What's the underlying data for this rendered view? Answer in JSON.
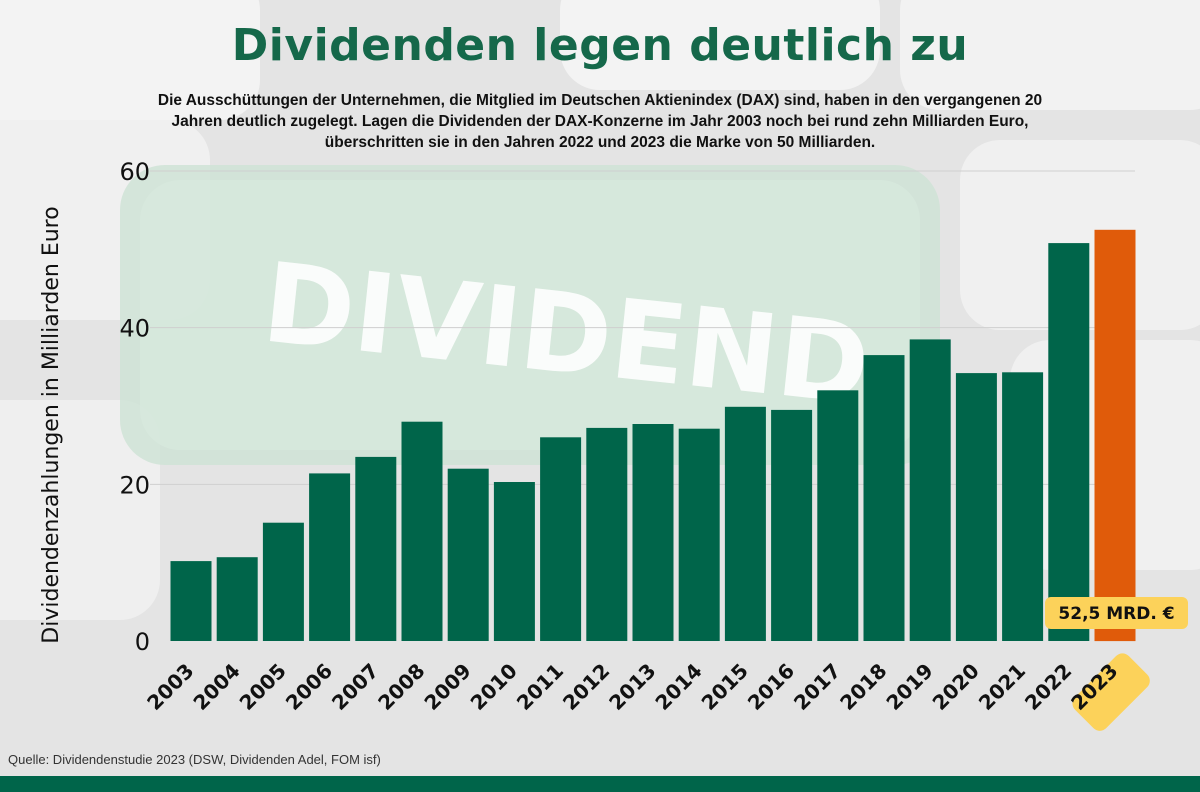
{
  "header": {
    "title": "Dividenden legen deutlich zu",
    "subtitle_lines": [
      "Die Ausschüttungen der Unternehmen, die Mitglied im Deutschen Aktienindex (DAX) sind, haben in den vergangenen 20",
      "Jahren deutlich zugelegt. Lagen die Dividenden der DAX-Konzerne im Jahr 2003 noch bei rund zehn Milliarden Euro,",
      "überschritten sie in den Jahren 2022 und 2023 die Marke von 50 Milliarden."
    ]
  },
  "background": {
    "watermark": "DIVIDEND"
  },
  "chart_data": {
    "type": "bar",
    "title": "Dividenden legen deutlich zu",
    "ylabel": "Dividendenzahlungen in Milliarden Euro",
    "xlabel": "",
    "ylim": [
      0,
      60
    ],
    "yticks": [
      0,
      20,
      40,
      60
    ],
    "grid": true,
    "categories": [
      "2003",
      "2004",
      "2005",
      "2006",
      "2007",
      "2008",
      "2009",
      "2010",
      "2011",
      "2012",
      "2013",
      "2014",
      "2015",
      "2016",
      "2017",
      "2018",
      "2019",
      "2020",
      "2021",
      "2022",
      "2023"
    ],
    "values": [
      10.2,
      10.7,
      15.1,
      21.4,
      23.5,
      28.0,
      22.0,
      20.3,
      26.0,
      27.2,
      27.7,
      27.1,
      29.9,
      29.5,
      32.0,
      36.5,
      38.5,
      34.2,
      34.3,
      50.8,
      52.5
    ],
    "highlight_index": 20,
    "annotation": "52,5 MRD. €",
    "colors": {
      "bar": "#00654a",
      "highlight": "#e05b0a",
      "badge": "#fcd25a",
      "title": "#15684a"
    }
  },
  "footer": {
    "source": "Quelle: Dividendenstudie 2023 (DSW, Dividenden Adel, FOM isf)"
  }
}
